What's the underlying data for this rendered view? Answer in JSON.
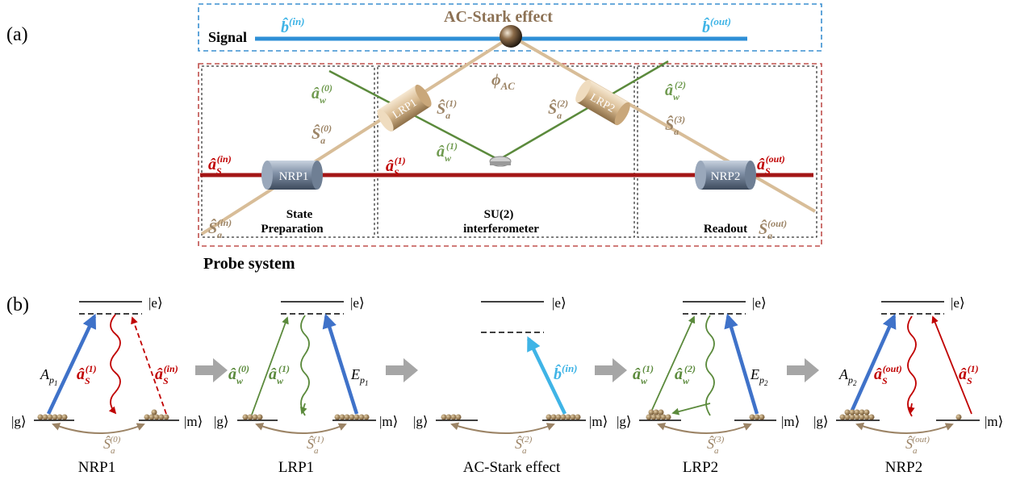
{
  "panel_a": {
    "label": "(a)",
    "signal_label": "Signal",
    "b_in": "b̂",
    "b_in_sup": "(in)",
    "b_out": "b̂",
    "b_out_sup": "(out)",
    "ac_stark": "AC-Stark effect",
    "phi": "ϕ",
    "phi_sub": "AC",
    "nrp1": "NRP1",
    "nrp2": "NRP2",
    "lrp1": "LRP1",
    "lrp2": "LRP2",
    "state_prep_1": "State",
    "state_prep_2": "Preparation",
    "su2_1": "SU(2)",
    "su2_2": "interferometer",
    "readout": "Readout",
    "probe_system": "Probe system",
    "sym_aS": "â",
    "sym_aS_sub": "S",
    "sym_aw": "â",
    "sym_aw_sub": "w",
    "sym_Sa": "Ŝ",
    "sym_Sa_sub": "a",
    "sup_in": "(in)",
    "sup_out": "(out)",
    "sup_0": "(0)",
    "sup_1": "(1)",
    "sup_2": "(2)",
    "sup_3": "(3)"
  },
  "panel_b": {
    "label": "(b)",
    "ket_e": "|e⟩",
    "ket_g": "|g⟩",
    "ket_m": "|m⟩",
    "A": "A",
    "E": "E",
    "p1": "p",
    "p1_sub": "1",
    "p2_sub": "2",
    "stages": [
      "NRP1",
      "LRP1",
      "AC-Stark effect",
      "LRP2",
      "NRP2"
    ],
    "sup_outR": "(out)"
  },
  "colors": {
    "signal_blue": "#2e8fd6",
    "light_blue": "#3fb4e6",
    "dash_blue": "#3a8fd0",
    "dash_red": "#c0504d",
    "red": "#c00000",
    "green": "#5b8a3c",
    "brown": "#9c8466",
    "pump_blue": "#3f72c9",
    "gray_arrow": "#a6a6a6"
  }
}
